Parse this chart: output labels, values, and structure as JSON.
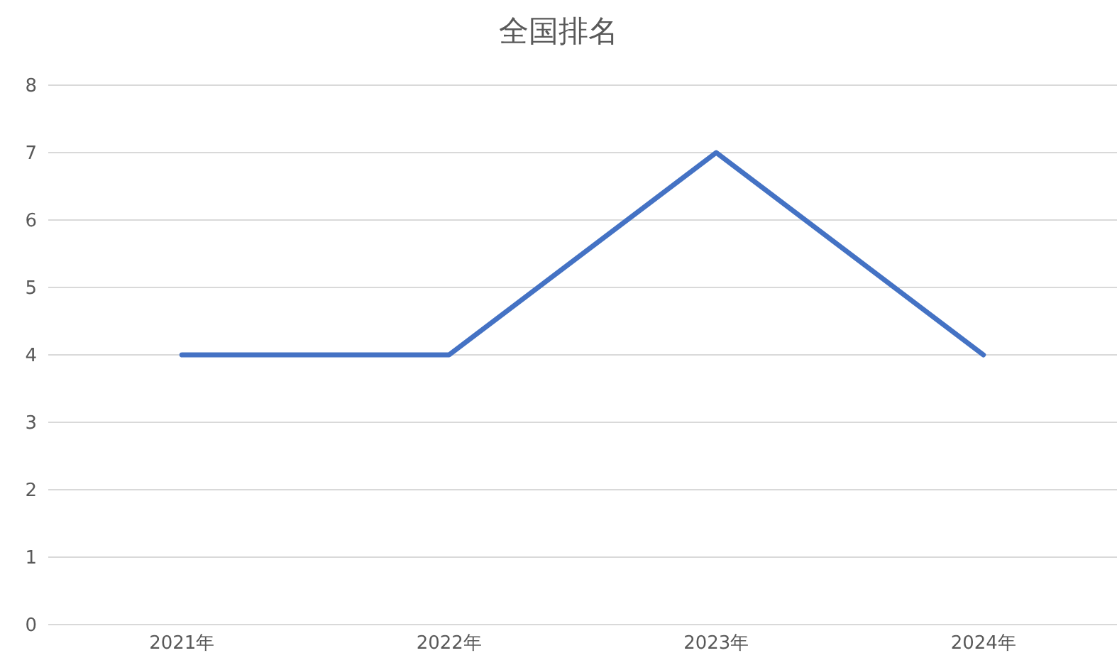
{
  "chart_data": {
    "type": "line",
    "title": "全国排名",
    "categories": [
      "2021年",
      "2022年",
      "2023年",
      "2024年"
    ],
    "series": [
      {
        "color": "#4472c4",
        "values": [
          4,
          4,
          7,
          4
        ]
      }
    ],
    "ylim": [
      0,
      8
    ],
    "yticks": [
      0,
      1,
      2,
      3,
      4,
      5,
      6,
      7,
      8
    ],
    "grid": "y"
  }
}
